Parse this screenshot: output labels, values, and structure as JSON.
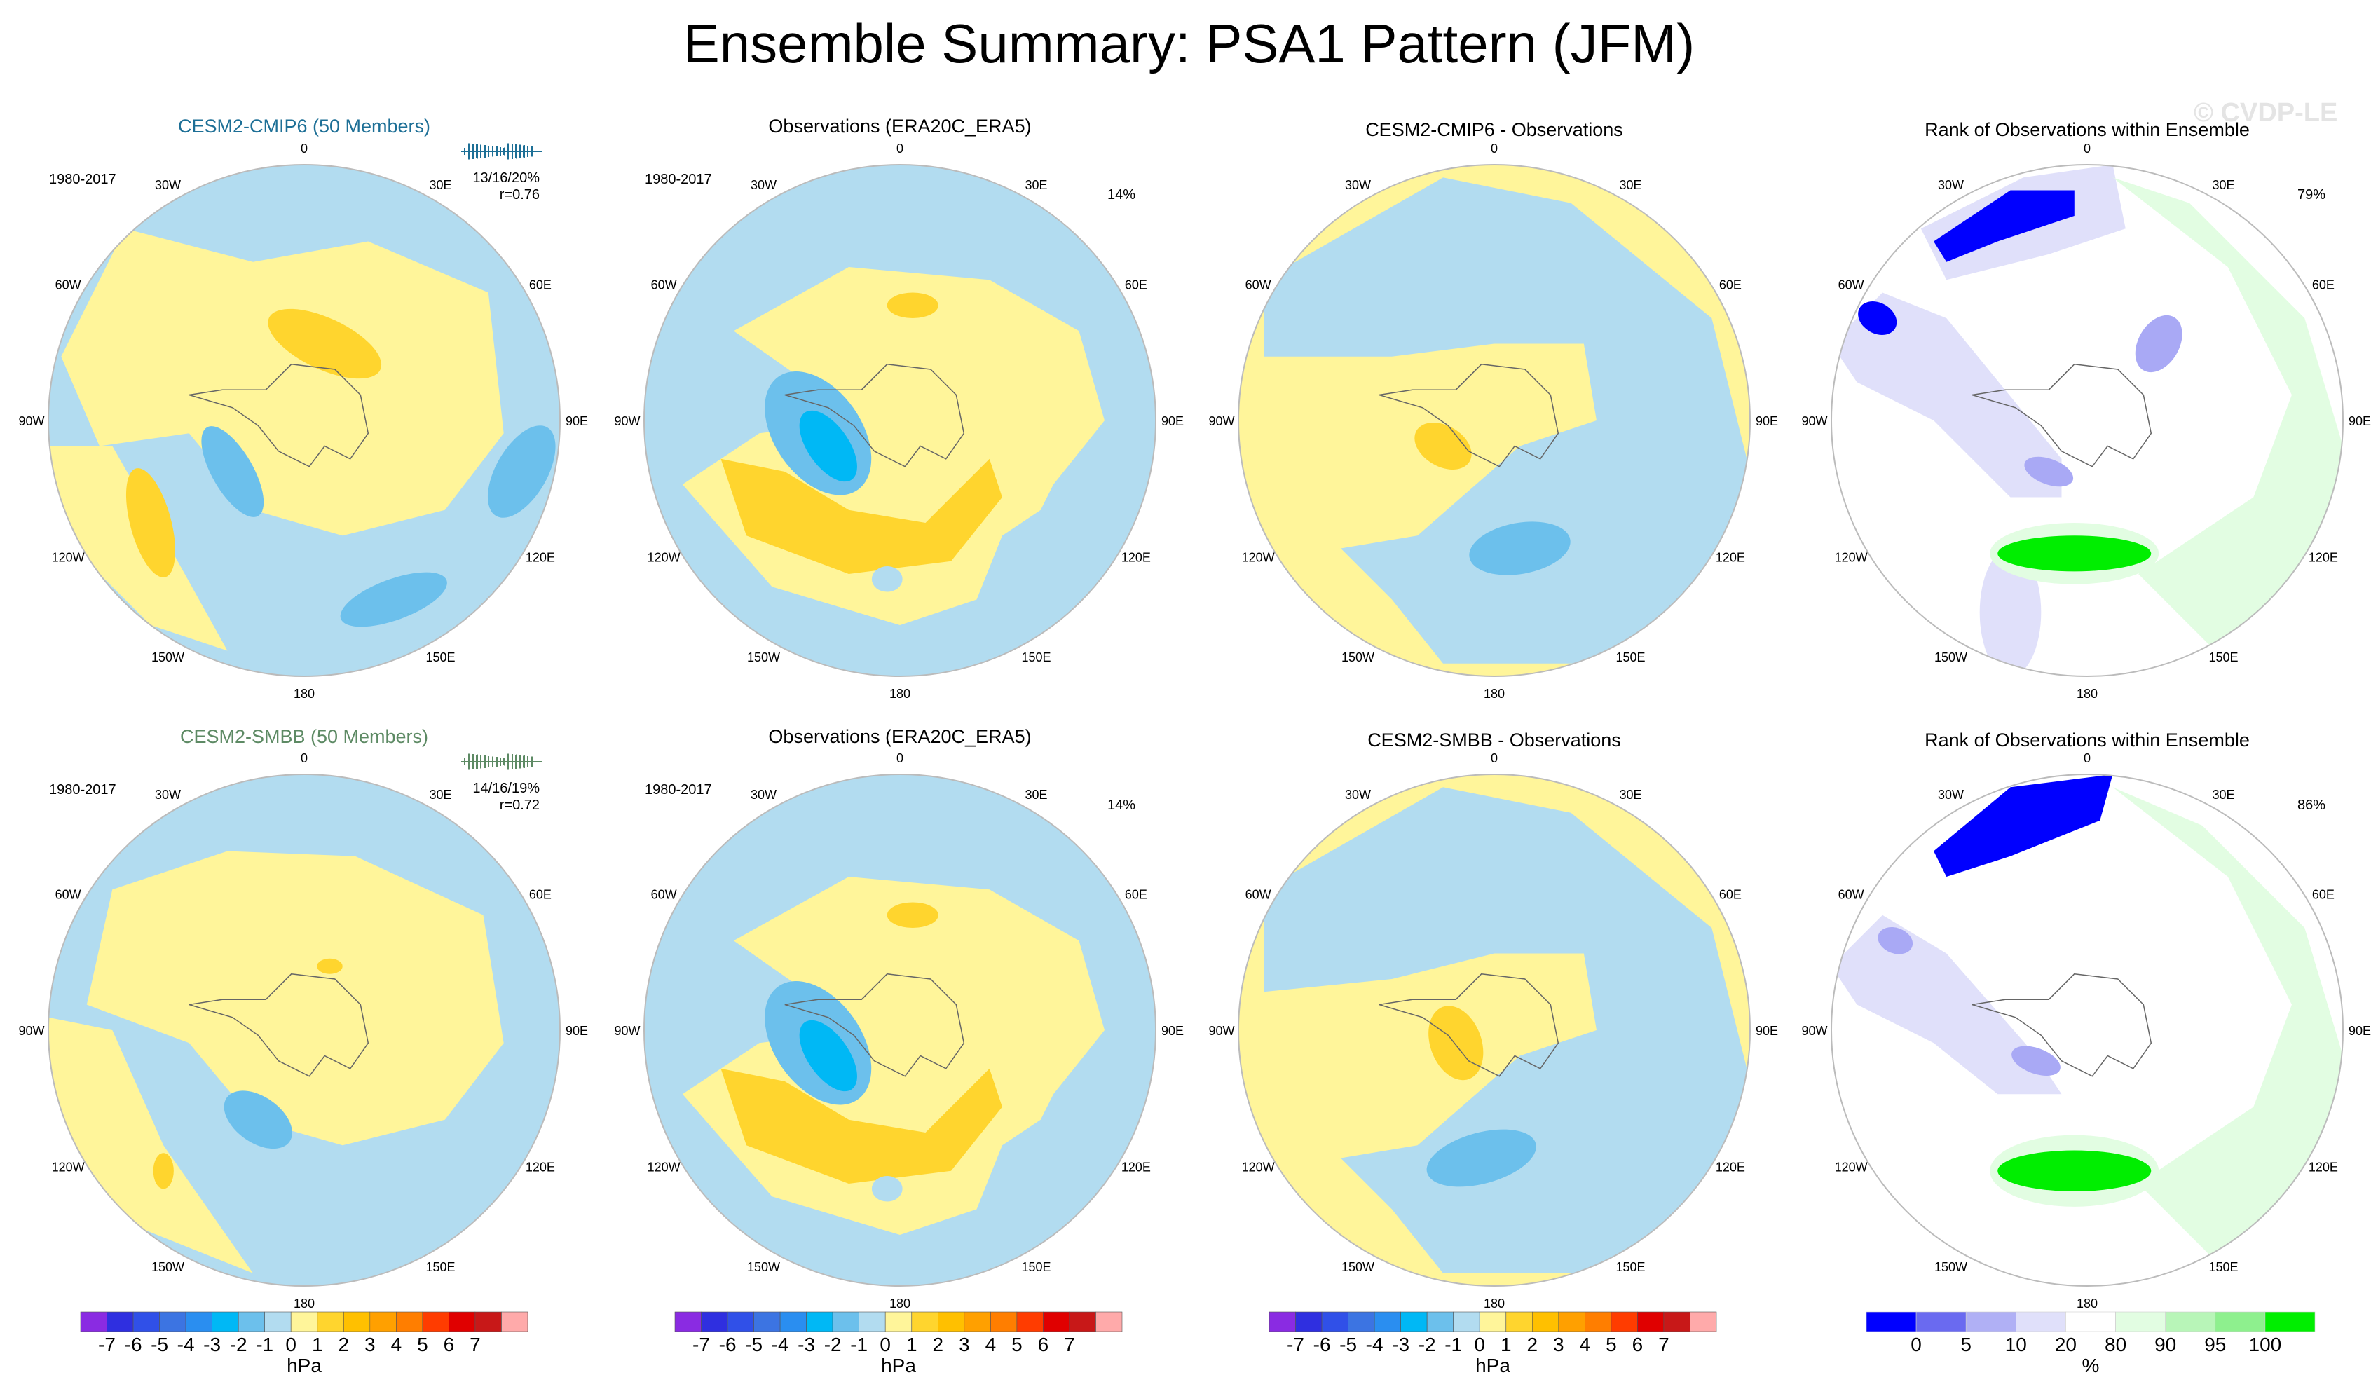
{
  "figure": {
    "title": "Ensemble Summary: PSA1 Pattern (JFM)",
    "watermark": "© CVDP-LE"
  },
  "map_labels": {
    "lon_ticks": [
      "0",
      "30E",
      "60E",
      "90E",
      "120E",
      "150E",
      "180",
      "150W",
      "120W",
      "90W",
      "60W",
      "30W"
    ]
  },
  "colors": {
    "background_ocean": "#b2dcf0",
    "pos_1": "#fff59a",
    "pos_2": "#ffd52e",
    "neg_1": "#b2dcf0",
    "neg_2": "#6cc0ec",
    "neg_3": "#00b8f5",
    "rank_low": "#0000ff",
    "rank_mid": "#a9a9f5",
    "rank_pale": "#e0e0fa",
    "rank_hi": "#00ee00",
    "rank_hi_pale": "#e2fde2"
  },
  "panels": [
    {
      "id": "r1c1",
      "title": "CESM2-CMIP6 (50 Members)",
      "title_color": "#1d6f96",
      "period": "1980-2017",
      "stats": "13/16/20%",
      "corr": "r=0.76",
      "pct": ""
    },
    {
      "id": "r1c2",
      "title": "Observations (ERA20C_ERA5)",
      "title_color": "#000000",
      "period": "1980-2017",
      "stats": "",
      "corr": "",
      "pct": "14%"
    },
    {
      "id": "r1c3",
      "title": "CESM2-CMIP6 - Observations",
      "title_color": "#000000",
      "period": "",
      "stats": "",
      "corr": "",
      "pct": ""
    },
    {
      "id": "r1c4",
      "title": "Rank of Observations within Ensemble",
      "title_color": "#000000",
      "period": "",
      "stats": "",
      "corr": "",
      "pct": "79%"
    },
    {
      "id": "r2c1",
      "title": "CESM2-SMBB (50 Members)",
      "title_color": "#5d8a64",
      "period": "1980-2017",
      "stats": "14/16/19%",
      "corr": "r=0.72",
      "pct": ""
    },
    {
      "id": "r2c2",
      "title": "Observations (ERA20C_ERA5)",
      "title_color": "#000000",
      "period": "1980-2017",
      "stats": "",
      "corr": "",
      "pct": "14%"
    },
    {
      "id": "r2c3",
      "title": "CESM2-SMBB - Observations",
      "title_color": "#000000",
      "period": "",
      "stats": "",
      "corr": "",
      "pct": ""
    },
    {
      "id": "r2c4",
      "title": "Rank of Observations within Ensemble",
      "title_color": "#000000",
      "period": "",
      "stats": "",
      "corr": "",
      "pct": "86%"
    }
  ],
  "chart_data": {
    "type": "heatmap",
    "projection": "south polar stereographic",
    "variable": "PSA1 pattern (sea level pressure regression)",
    "season": "JFM",
    "period": "1980-2017",
    "pattern_colorbar": {
      "unit": "hPa",
      "levels": [
        -7,
        -6,
        -5,
        -4,
        -3,
        -2,
        -1,
        0,
        1,
        2,
        3,
        4,
        5,
        6,
        7
      ],
      "tick_labels": [
        "-7",
        "-6",
        "-5",
        "-4",
        "-3",
        "-2",
        "-1",
        "0",
        "1",
        "2",
        "3",
        "4",
        "5",
        "6",
        "7"
      ],
      "colors": [
        "#8a2be2",
        "#2f2fe0",
        "#3050e8",
        "#3c74e2",
        "#2a8ef0",
        "#00b8f5",
        "#6cc0ec",
        "#b2dcf0",
        "#fff59a",
        "#ffd52e",
        "#ffc000",
        "#ffa000",
        "#ff7e00",
        "#ff3c00",
        "#e00000",
        "#c81818",
        "#ffaaaa"
      ]
    },
    "rank_colorbar": {
      "unit": "%",
      "levels": [
        0,
        5,
        10,
        20,
        80,
        90,
        95,
        100
      ],
      "tick_labels": [
        "0",
        "5",
        "10",
        "20",
        "80",
        "90",
        "95",
        "100"
      ],
      "colors": [
        "#0000ff",
        "#6a6af0",
        "#b0b0f5",
        "#e0e0fa",
        "#ffffff",
        "#e2fde2",
        "#b8f5b8",
        "#8ef08e",
        "#00ee00"
      ]
    },
    "ensembles": [
      {
        "name": "CESM2-CMIP6",
        "members": 50,
        "pattern_stats": "13/16/20%",
        "pattern_correlation": 0.76,
        "rank_pct": 79
      },
      {
        "name": "CESM2-SMBB",
        "members": 50,
        "pattern_stats": "14/16/19%",
        "pattern_correlation": 0.72,
        "rank_pct": 86
      }
    ],
    "observations": {
      "name": "ERA20C_ERA5",
      "pct_variance": 14
    }
  }
}
